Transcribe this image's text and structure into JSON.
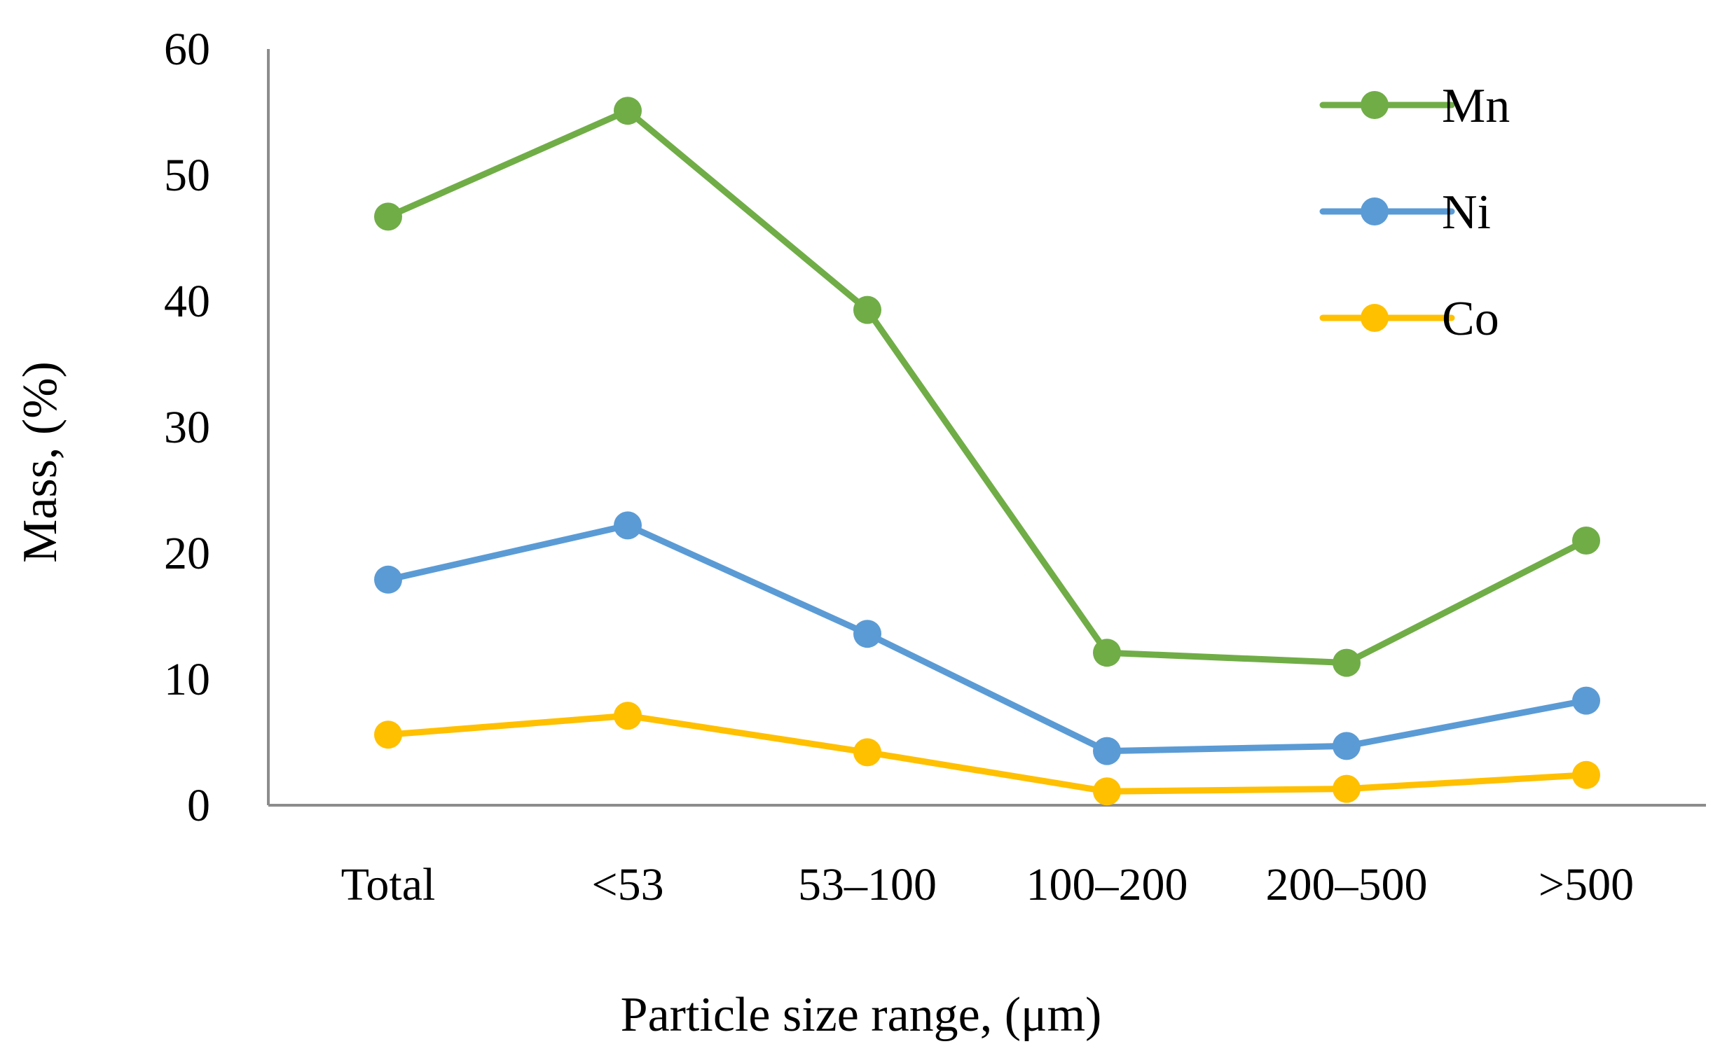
{
  "chart_data": {
    "type": "line",
    "title": "",
    "xlabel": "Particle size range, (μm)",
    "ylabel": "Mass, (%)",
    "categories": [
      "Total",
      "<53",
      "53–100",
      "100–200",
      "200–500",
      ">500"
    ],
    "ylim": [
      0,
      60
    ],
    "yticks": [
      0,
      10,
      20,
      30,
      40,
      50,
      60
    ],
    "ytick_labels": [
      "0",
      "10",
      "20",
      "30",
      "40",
      "50",
      "60"
    ],
    "grid": false,
    "legend_position": "top-right",
    "series": [
      {
        "name": "Mn",
        "color": "#70AD47",
        "values": [
          46.7,
          55.1,
          39.3,
          12.1,
          11.3,
          21.0
        ]
      },
      {
        "name": "Ni",
        "color": "#5B9BD5",
        "values": [
          17.9,
          22.2,
          13.6,
          4.3,
          4.7,
          8.3
        ]
      },
      {
        "name": "Co",
        "color": "#FFC000",
        "values": [
          5.6,
          7.1,
          4.2,
          1.1,
          1.3,
          2.4
        ]
      }
    ]
  }
}
